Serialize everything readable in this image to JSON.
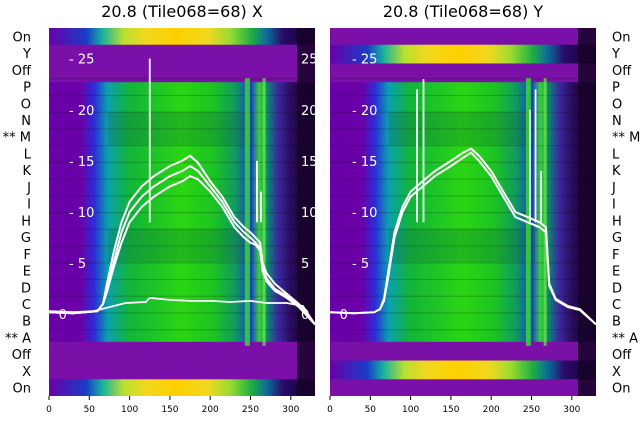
{
  "chart_data": {
    "type": "heatmap",
    "x_ticks": [
      0,
      50,
      100,
      150,
      200,
      250,
      300
    ],
    "xlim": [
      0,
      330
    ],
    "ylim": [
      -8,
      28
    ],
    "y_ticks": [
      0,
      5,
      10,
      15,
      20,
      25
    ],
    "row_labels": [
      "On",
      "Y",
      "Off",
      "P",
      "O",
      "N",
      "** M",
      "L",
      "K",
      "J",
      "I",
      "H",
      "G",
      "F",
      "E",
      "D",
      "C",
      "B",
      "** A",
      "Off",
      "X",
      "On"
    ],
    "panels": [
      {
        "title": "20.8 (Tile068=68) X",
        "upper_rail": "left",
        "bright_row_index": 0,
        "middle_curve": {
          "x": [
            0,
            30,
            55,
            70,
            95,
            120,
            125,
            150,
            175,
            200,
            225,
            250,
            270,
            295,
            315,
            330
          ],
          "y": [
            0.3,
            0.2,
            0.3,
            0.6,
            1.1,
            1.2,
            1.6,
            1.4,
            1.3,
            1.3,
            1.2,
            1.3,
            1.1,
            1.1,
            0.8,
            -1.0
          ]
        },
        "traces": [
          {
            "x": [
              0,
              30,
              60,
              67,
              72,
              80,
              90,
              100,
              115,
              130,
              150,
              165,
              175,
              185,
              200,
              215,
              230,
              242,
              250,
              256,
              262,
              265,
              270,
              280,
              295,
              310,
              330
            ],
            "y": [
              0.2,
              0.1,
              0.3,
              1,
              3,
              6,
              9,
              11,
              12.5,
              13.5,
              14.5,
              15,
              15.5,
              14.8,
              13,
              11.5,
              9.5,
              8.5,
              8,
              7.5,
              7,
              5,
              4,
              3,
              2,
              1,
              -1
            ]
          },
          {
            "x": [
              0,
              30,
              60,
              67,
              72,
              80,
              90,
              100,
              115,
              130,
              150,
              165,
              175,
              185,
              200,
              215,
              230,
              242,
              250,
              256,
              262,
              265,
              270,
              280,
              295,
              310,
              330
            ],
            "y": [
              0.2,
              0.1,
              0.3,
              1,
              2.5,
              5,
              8,
              10,
              11.5,
              12.5,
              13.5,
              14,
              14.5,
              14,
              12.5,
              11,
              9,
              8,
              7.5,
              7,
              6.5,
              4.5,
              3.5,
              2.5,
              1.8,
              0.8,
              -1
            ]
          },
          {
            "x": [
              0,
              30,
              60,
              67,
              72,
              80,
              90,
              100,
              115,
              130,
              150,
              165,
              175,
              185,
              200,
              215,
              230,
              242,
              250,
              256,
              262,
              265,
              270,
              280,
              295,
              310,
              330
            ],
            "y": [
              0.2,
              0.1,
              0.3,
              1,
              2.2,
              4.5,
              7,
              9,
              10.5,
              11.5,
              12.5,
              13,
              13.5,
              13.2,
              12,
              10.5,
              8.5,
              7.5,
              7,
              6.8,
              6.2,
              4.2,
              3.2,
              2.3,
              1.6,
              0.7,
              -1
            ]
          }
        ],
        "spikes": [
          {
            "x": 125,
            "peak": 25
          },
          {
            "x": 258,
            "peak": 15
          },
          {
            "x": 263,
            "peak": 12
          }
        ]
      },
      {
        "title": "20.8 (Tile068=68) Y",
        "upper_rail": "right",
        "bright_row_index": 1,
        "middle_curve": null,
        "traces": [
          {
            "x": [
              0,
              30,
              55,
              62,
              67,
              72,
              80,
              90,
              100,
              115,
              130,
              150,
              165,
              175,
              185,
              200,
              215,
              230,
              245,
              260,
              268,
              272,
              280,
              295,
              310,
              330
            ],
            "y": [
              0.2,
              0.1,
              0.2,
              0.5,
              1.5,
              4,
              8,
              10.5,
              12,
              13,
              14,
              15,
              15.8,
              16.2,
              15.5,
              14,
              12,
              10,
              9.5,
              9,
              8.5,
              3,
              1.5,
              0.8,
              0.5,
              -1
            ]
          },
          {
            "x": [
              0,
              30,
              55,
              62,
              67,
              72,
              80,
              90,
              100,
              115,
              130,
              150,
              165,
              175,
              185,
              200,
              215,
              230,
              245,
              260,
              268,
              272,
              280,
              295,
              310,
              330
            ],
            "y": [
              0.2,
              0.1,
              0.2,
              0.5,
              1.3,
              3.5,
              7.5,
              10,
              11.5,
              12.5,
              13.5,
              14.5,
              15.3,
              15.8,
              15,
              13.5,
              11.5,
              9.5,
              9,
              8.5,
              8,
              2.8,
              1.4,
              0.7,
              0.4,
              -1
            ]
          }
        ],
        "spikes": [
          {
            "x": 108,
            "peak": 22
          },
          {
            "x": 116,
            "peak": 23
          },
          {
            "x": 248,
            "peak": 20
          },
          {
            "x": 255,
            "peak": 22
          },
          {
            "x": 262,
            "peak": 14
          }
        ]
      }
    ]
  }
}
